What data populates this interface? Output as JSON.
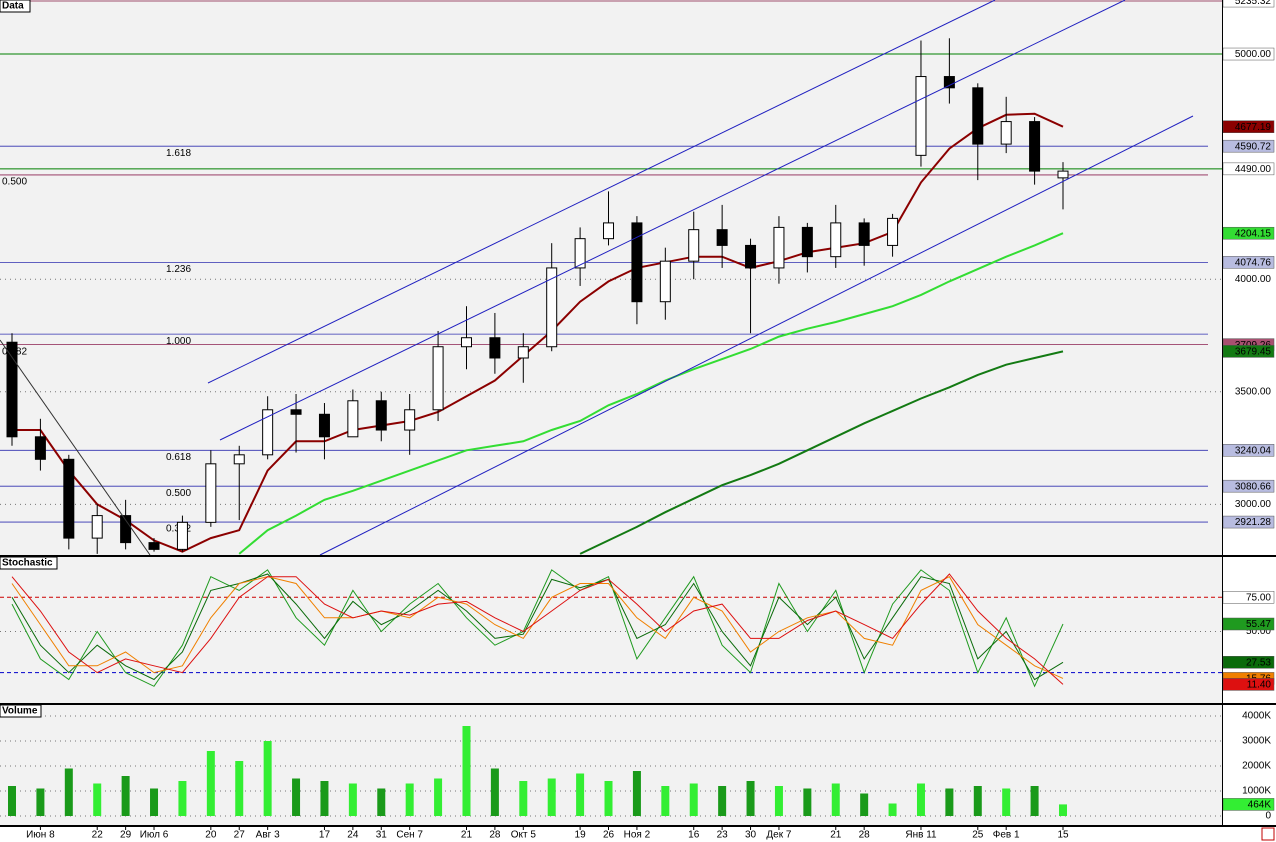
{
  "chart_data": [
    {
      "type": "candlestick",
      "title": "Data",
      "open": [
        3720,
        3300,
        3200,
        2850,
        2950,
        2830,
        2800,
        2920,
        3180,
        3220,
        3420,
        3400,
        3300,
        3460,
        3330,
        3420,
        3700,
        3740,
        3650,
        3700,
        4050,
        4180,
        4250,
        3900,
        4080,
        4220,
        4150,
        4050,
        4230,
        4100,
        4250,
        4150,
        4550,
        4900,
        4850,
        4600,
        4700,
        4450
      ],
      "high": [
        3760,
        3380,
        3220,
        3000,
        3020,
        2850,
        2950,
        3240,
        3260,
        3480,
        3490,
        3450,
        3510,
        3500,
        3490,
        3770,
        3880,
        3850,
        3760,
        4160,
        4230,
        4390,
        4280,
        4140,
        4300,
        4330,
        4180,
        4280,
        4250,
        4330,
        4270,
        4290,
        5060,
        5070,
        4870,
        4810,
        4720,
        4520
      ],
      "low": [
        3260,
        3150,
        2800,
        2780,
        2800,
        2790,
        2790,
        2900,
        2930,
        3200,
        3230,
        3200,
        3300,
        3280,
        3220,
        3370,
        3600,
        3580,
        3540,
        3680,
        3970,
        4150,
        3800,
        3820,
        4000,
        4050,
        3760,
        3980,
        4030,
        4050,
        4060,
        4100,
        4500,
        4780,
        4440,
        4560,
        4420,
        4310
      ],
      "close": [
        3300,
        3200,
        2850,
        2950,
        2830,
        2800,
        2920,
        3180,
        3220,
        3420,
        3400,
        3300,
        3460,
        3330,
        3420,
        3700,
        3740,
        3650,
        3700,
        4050,
        4180,
        4250,
        3900,
        4080,
        4220,
        4150,
        4050,
        4230,
        4100,
        4250,
        4150,
        4270,
        4900,
        4850,
        4600,
        4700,
        4480,
        4480
      ],
      "up_color": "#ffffff",
      "down_color": "#000000",
      "series": [
        {
          "color": "#8b0000",
          "values": [
            3330,
            3330,
            3150,
            3000,
            2930,
            2840,
            2790,
            2850,
            2885,
            3150,
            3280,
            3280,
            3330,
            3350,
            3370,
            3410,
            3480,
            3550,
            3660,
            3770,
            3900,
            3990,
            4050,
            4075,
            4100,
            4100,
            4050,
            4080,
            4120,
            4140,
            4160,
            4210,
            4430,
            4580,
            4670,
            4730,
            4735,
            4677.19
          ],
          "last_label": "4677.19"
        },
        {
          "color": "#33dd33",
          "values": [
            null,
            null,
            null,
            null,
            null,
            null,
            null,
            null,
            2780,
            2885,
            2950,
            3020,
            3060,
            3105,
            3150,
            3195,
            3240,
            3260,
            3280,
            3330,
            3370,
            3440,
            3490,
            3550,
            3600,
            3645,
            3690,
            3745,
            3780,
            3810,
            3845,
            3880,
            3930,
            3990,
            4045,
            4100,
            4150,
            4204.15
          ],
          "last_label": "4204.15"
        },
        {
          "color": "#137a13",
          "values": [
            null,
            null,
            null,
            null,
            null,
            null,
            null,
            null,
            null,
            null,
            null,
            null,
            null,
            null,
            null,
            null,
            null,
            null,
            null,
            null,
            2780,
            2840,
            2900,
            2965,
            3025,
            3085,
            3130,
            3180,
            3240,
            3300,
            3360,
            3415,
            3470,
            3520,
            3575,
            3620,
            3650,
            3679.45
          ],
          "last_label": "3679.45"
        }
      ],
      "levels": [
        {
          "value": 5235.32,
          "label": "5235.32",
          "color": "#a0506e"
        },
        {
          "value": 5000,
          "label": "5000.00",
          "color": "#008000"
        },
        {
          "value": 4490,
          "label": "4490.00",
          "color": "#008000"
        }
      ],
      "fibonacci": [
        {
          "color": "#3030b0",
          "levels": [
            {
              "ratio": "0.382",
              "value": 2921.28,
              "label": "2921.28"
            },
            {
              "ratio": "0.500",
              "value": 3080.66,
              "label": "3080.66"
            },
            {
              "ratio": "0.618",
              "value": 3240.04,
              "label": "3240.04"
            },
            {
              "ratio": "1.000",
              "value": 3756
            },
            {
              "ratio": "1.236",
              "value": 4074.76,
              "label": "4074.76"
            },
            {
              "ratio": "1.618",
              "value": 4590.72,
              "label": "4590.72"
            }
          ]
        },
        {
          "color": "#8b2050",
          "levels": [
            {
              "ratio": "0.382",
              "value": 3709.26,
              "label": "3709.26"
            },
            {
              "ratio": "0.500",
              "value": 4463
            }
          ]
        }
      ],
      "ylim": [
        2775,
        5240
      ],
      "yticks": [
        {
          "value": 3000,
          "label": "3000.00"
        },
        {
          "value": 3500,
          "label": "3500.00"
        },
        {
          "value": 4000,
          "label": "4000.00"
        }
      ],
      "grid": true
    },
    {
      "type": "line",
      "title": "Stochastic",
      "series": [
        {
          "color": "#1f9a1f",
          "values": [
            70,
            30,
            15,
            50,
            20,
            10,
            40,
            90,
            80,
            95,
            60,
            40,
            80,
            50,
            70,
            85,
            60,
            40,
            50,
            95,
            80,
            90,
            30,
            60,
            90,
            40,
            20,
            85,
            50,
            80,
            20,
            70,
            95,
            80,
            20,
            60,
            10,
            55.47
          ],
          "last_label": "55.47"
        },
        {
          "color": "#0a6a0a",
          "values": [
            75,
            40,
            20,
            40,
            25,
            15,
            35,
            80,
            85,
            92,
            70,
            45,
            72,
            55,
            65,
            80,
            65,
            45,
            48,
            88,
            82,
            88,
            45,
            55,
            85,
            50,
            25,
            75,
            55,
            75,
            30,
            60,
            90,
            85,
            30,
            50,
            15,
            27.53
          ],
          "last_label": "27.53"
        },
        {
          "color": "#f08000",
          "values": [
            85,
            55,
            25,
            25,
            35,
            20,
            25,
            60,
            85,
            90,
            85,
            60,
            60,
            65,
            60,
            75,
            70,
            55,
            45,
            75,
            85,
            85,
            60,
            45,
            75,
            65,
            35,
            50,
            60,
            65,
            45,
            40,
            80,
            90,
            55,
            40,
            25,
            15.76
          ],
          "last_label": "15.76"
        },
        {
          "color": "#dd1010",
          "values": [
            90,
            65,
            35,
            20,
            30,
            25,
            20,
            45,
            75,
            90,
            90,
            70,
            60,
            65,
            62,
            70,
            72,
            60,
            50,
            65,
            80,
            88,
            70,
            50,
            65,
            70,
            45,
            45,
            58,
            65,
            55,
            45,
            70,
            92,
            65,
            45,
            30,
            11.4
          ],
          "last_label": "11.40"
        }
      ],
      "levels": [
        {
          "value": 75,
          "label": "75.00",
          "color": "#cc0000"
        },
        {
          "value": 20,
          "color": "#0000cc"
        }
      ],
      "ylim": [
        0,
        100
      ],
      "yticks": [
        {
          "value": 50,
          "label": "50.00"
        }
      ],
      "grid": true
    },
    {
      "type": "bar",
      "title": "Volume",
      "categories": [
        null,
        "Июн 8",
        null,
        "22",
        "29",
        "Июл 6",
        null,
        "20",
        "27",
        "Авг 3",
        null,
        "17",
        "24",
        "31",
        "Сен 7",
        null,
        "21",
        "28",
        "Окт 5",
        null,
        "19",
        "26",
        "Ноя 2",
        null,
        "16",
        "23",
        "30",
        "Дек 7",
        null,
        "21",
        "28",
        null,
        "Янв 11",
        null,
        "25",
        "Фев 1",
        null,
        "15"
      ],
      "values": [
        1200000,
        1100000,
        1900000,
        1300000,
        1600000,
        1100000,
        1400000,
        2600000,
        2200000,
        3000000,
        1500000,
        1400000,
        1300000,
        1100000,
        1300000,
        1500000,
        3600000,
        1900000,
        1400000,
        1500000,
        1700000,
        1400000,
        1800000,
        1200000,
        1300000,
        1200000,
        1400000,
        1200000,
        1100000,
        1300000,
        900000,
        500000,
        1300000,
        1100000,
        1200000,
        1100000,
        1200000,
        464000
      ],
      "last_label": "464K",
      "up_color": "#33ee33",
      "down_color": "#1a9a1a",
      "ylim": [
        0,
        4440000
      ],
      "yticks": [
        0,
        {
          "value": 1000000,
          "label": "1000K"
        },
        {
          "value": 2000000,
          "label": "2000K"
        },
        {
          "value": 3000000,
          "label": "3000K"
        },
        {
          "value": 4000000,
          "label": "4000K"
        }
      ],
      "grid": true
    }
  ]
}
